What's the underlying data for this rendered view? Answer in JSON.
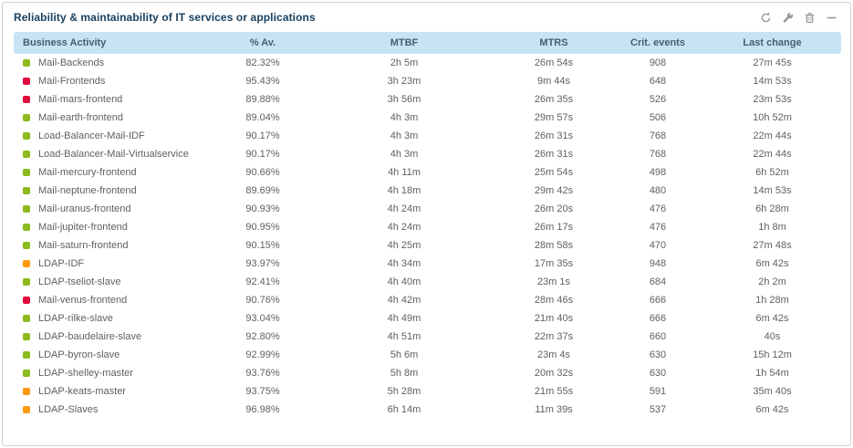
{
  "widget": {
    "title": "Reliability & maintainability of IT services or applications",
    "toolbar": {
      "refresh": "refresh",
      "settings": "settings",
      "delete": "delete",
      "collapse": "collapse"
    }
  },
  "colors": {
    "green": "#8bbb1d",
    "red": "#e00b3d",
    "orange": "#ff9a13",
    "header_bg": "#c7e4f3",
    "title_text": "#18405f",
    "icon_gray": "#999999"
  },
  "table": {
    "columns": [
      {
        "key": "activity",
        "label": "Business Activity"
      },
      {
        "key": "av",
        "label": "% Av."
      },
      {
        "key": "mtbf",
        "label": "MTBF"
      },
      {
        "key": "mtrs",
        "label": "MTRS"
      },
      {
        "key": "crit",
        "label": "Crit. events"
      },
      {
        "key": "change",
        "label": "Last change"
      }
    ],
    "rows": [
      {
        "status": "green",
        "activity": "Mail-Backends",
        "av": "82.32%",
        "mtbf": "2h 5m",
        "mtrs": "26m 54s",
        "crit": "908",
        "change": "27m 45s"
      },
      {
        "status": "red",
        "activity": "Mail-Frontends",
        "av": "95.43%",
        "mtbf": "3h 23m",
        "mtrs": "9m 44s",
        "crit": "648",
        "change": "14m 53s"
      },
      {
        "status": "red",
        "activity": "Mail-mars-frontend",
        "av": "89.88%",
        "mtbf": "3h 56m",
        "mtrs": "26m 35s",
        "crit": "526",
        "change": "23m 53s"
      },
      {
        "status": "green",
        "activity": "Mail-earth-frontend",
        "av": "89.04%",
        "mtbf": "4h 3m",
        "mtrs": "29m 57s",
        "crit": "506",
        "change": "10h 52m"
      },
      {
        "status": "green",
        "activity": "Load-Balancer-Mail-IDF",
        "av": "90.17%",
        "mtbf": "4h 3m",
        "mtrs": "26m 31s",
        "crit": "768",
        "change": "22m 44s"
      },
      {
        "status": "green",
        "activity": "Load-Balancer-Mail-Virtualservice",
        "av": "90.17%",
        "mtbf": "4h 3m",
        "mtrs": "26m 31s",
        "crit": "768",
        "change": "22m 44s"
      },
      {
        "status": "green",
        "activity": "Mail-mercury-frontend",
        "av": "90.66%",
        "mtbf": "4h 11m",
        "mtrs": "25m 54s",
        "crit": "498",
        "change": "6h 52m"
      },
      {
        "status": "green",
        "activity": "Mail-neptune-frontend",
        "av": "89.69%",
        "mtbf": "4h 18m",
        "mtrs": "29m 42s",
        "crit": "480",
        "change": "14m 53s"
      },
      {
        "status": "green",
        "activity": "Mail-uranus-frontend",
        "av": "90.93%",
        "mtbf": "4h 24m",
        "mtrs": "26m 20s",
        "crit": "476",
        "change": "6h 28m"
      },
      {
        "status": "green",
        "activity": "Mail-jupiter-frontend",
        "av": "90.95%",
        "mtbf": "4h 24m",
        "mtrs": "26m 17s",
        "crit": "476",
        "change": "1h 8m"
      },
      {
        "status": "green",
        "activity": "Mail-saturn-frontend",
        "av": "90.15%",
        "mtbf": "4h 25m",
        "mtrs": "28m 58s",
        "crit": "470",
        "change": "27m 48s"
      },
      {
        "status": "orange",
        "activity": "LDAP-IDF",
        "av": "93.97%",
        "mtbf": "4h 34m",
        "mtrs": "17m 35s",
        "crit": "948",
        "change": "6m 42s"
      },
      {
        "status": "green",
        "activity": "LDAP-tseliot-slave",
        "av": "92.41%",
        "mtbf": "4h 40m",
        "mtrs": "23m 1s",
        "crit": "684",
        "change": "2h 2m"
      },
      {
        "status": "red",
        "activity": "Mail-venus-frontend",
        "av": "90.76%",
        "mtbf": "4h 42m",
        "mtrs": "28m 46s",
        "crit": "666",
        "change": "1h 28m"
      },
      {
        "status": "green",
        "activity": "LDAP-rilke-slave",
        "av": "93.04%",
        "mtbf": "4h 49m",
        "mtrs": "21m 40s",
        "crit": "666",
        "change": "6m 42s"
      },
      {
        "status": "green",
        "activity": "LDAP-baudelaire-slave",
        "av": "92.80%",
        "mtbf": "4h 51m",
        "mtrs": "22m 37s",
        "crit": "660",
        "change": "40s"
      },
      {
        "status": "green",
        "activity": "LDAP-byron-slave",
        "av": "92.99%",
        "mtbf": "5h 6m",
        "mtrs": "23m 4s",
        "crit": "630",
        "change": "15h 12m"
      },
      {
        "status": "green",
        "activity": "LDAP-shelley-master",
        "av": "93.76%",
        "mtbf": "5h 8m",
        "mtrs": "20m 32s",
        "crit": "630",
        "change": "1h 54m"
      },
      {
        "status": "orange",
        "activity": "LDAP-keats-master",
        "av": "93.75%",
        "mtbf": "5h 28m",
        "mtrs": "21m 55s",
        "crit": "591",
        "change": "35m 40s"
      },
      {
        "status": "orange",
        "activity": "LDAP-Slaves",
        "av": "96.98%",
        "mtbf": "6h 14m",
        "mtrs": "11m 39s",
        "crit": "537",
        "change": "6m 42s"
      }
    ]
  }
}
